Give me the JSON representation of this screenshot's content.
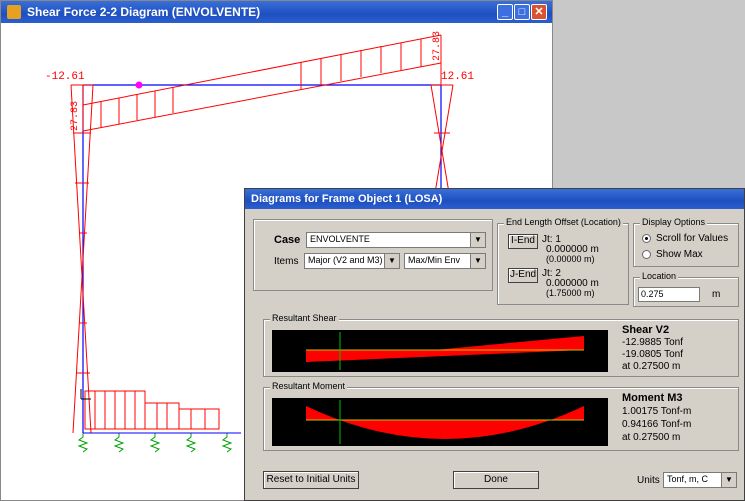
{
  "main_window": {
    "title": "Shear Force 2-2 Diagram   (ENVOLVENTE)",
    "canvas_labels": {
      "left_end": "-12.61",
      "right_end": "12.61",
      "top_right": "27.83",
      "left_column": "27.83"
    }
  },
  "dialog": {
    "title": "Diagrams for Frame Object 1  (LOSA)",
    "case_label": "Case",
    "case_value": "ENVOLVENTE",
    "items_label": "Items",
    "items_value": "Major (V2 and M3)",
    "items_mode": "Max/Min Env",
    "end_offset": {
      "group_label": "End Length Offset (Location)",
      "iend_button": "I-End",
      "iend_jt": "Jt:  1",
      "iend_offset": "0.000000 m",
      "iend_location": "(0.00000 m)",
      "jend_button": "J-End",
      "jend_jt": "Jt:  2",
      "jend_offset": "0.000000 m",
      "jend_location": "(1.75000 m)"
    },
    "display_options": {
      "group_label": "Display Options",
      "scroll_label": "Scroll for Values",
      "showmax_label": "Show Max"
    },
    "location": {
      "group_label": "Location",
      "value": "0.275",
      "unit": "m"
    },
    "shear": {
      "group_label": "Resultant Shear",
      "heading": "Shear V2",
      "line1": "-12.9885 Tonf",
      "line2": "-19.0805 Tonf",
      "line3": "at 0.27500 m"
    },
    "moment": {
      "group_label": "Resultant Moment",
      "heading": "Moment M3",
      "line1": "1.00175 Tonf-m",
      "line2": "0.94166 Tonf-m",
      "line3": "at 0.27500 m"
    },
    "reset_button": "Reset to Initial Units",
    "done_button": "Done",
    "units_label": "Units",
    "units_value": "Tonf, m, C"
  },
  "colors": {
    "diagram": "#ff0000",
    "frame": "#0000ff",
    "marker": "#ff00ff",
    "cursor_line": "#00c000"
  },
  "icons": [
    "minimize-icon",
    "maximize-icon",
    "close-icon",
    "app-icon",
    "dropdown-arrow-icon"
  ]
}
